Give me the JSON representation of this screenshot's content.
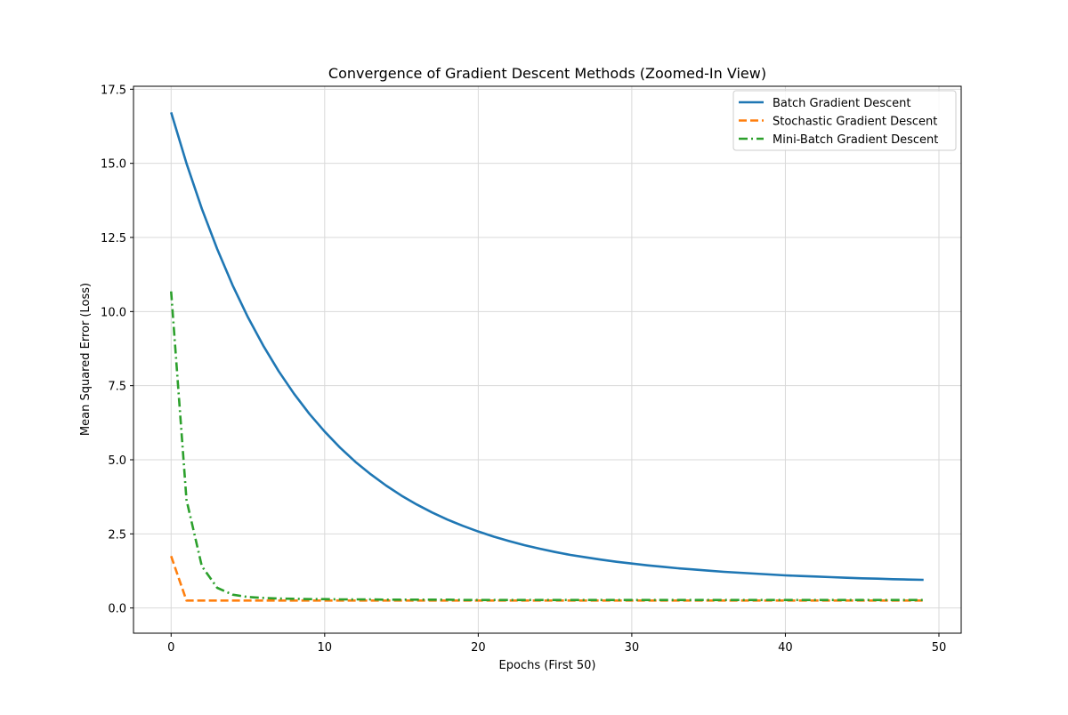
{
  "chart_data": {
    "type": "line",
    "title": "Convergence of Gradient Descent Methods (Zoomed-In View)",
    "xlabel": "Epochs (First 50)",
    "ylabel": "Mean Squared Error (Loss)",
    "xlim": [
      -2.45,
      51.45
    ],
    "ylim": [
      -0.85,
      17.6
    ],
    "grid": true,
    "legend_position": "top-right",
    "x_ticks": [
      0,
      10,
      20,
      30,
      40,
      50
    ],
    "x_tick_labels": [
      "0",
      "10",
      "20",
      "30",
      "40",
      "50"
    ],
    "y_ticks": [
      0,
      2.5,
      5,
      7.5,
      10,
      12.5,
      15,
      17.5
    ],
    "y_tick_labels": [
      "0.0",
      "2.5",
      "5.0",
      "7.5",
      "10.0",
      "12.5",
      "15.0",
      "17.5"
    ],
    "x": [
      0,
      1,
      2,
      3,
      4,
      5,
      6,
      7,
      8,
      9,
      10,
      11,
      12,
      13,
      14,
      15,
      16,
      17,
      18,
      19,
      20,
      21,
      22,
      23,
      24,
      25,
      26,
      27,
      28,
      29,
      30,
      31,
      32,
      33,
      34,
      35,
      36,
      37,
      38,
      39,
      40,
      41,
      42,
      43,
      44,
      45,
      46,
      47,
      48,
      49
    ],
    "series": [
      {
        "name": "Batch Gradient Descent",
        "color": "#1f77b4",
        "style": "solid",
        "values": [
          16.72,
          15.0,
          13.47,
          12.11,
          10.89,
          9.81,
          8.85,
          7.99,
          7.23,
          6.55,
          5.95,
          5.41,
          4.93,
          4.51,
          4.13,
          3.79,
          3.49,
          3.22,
          2.98,
          2.77,
          2.58,
          2.41,
          2.26,
          2.12,
          2.0,
          1.89,
          1.79,
          1.71,
          1.63,
          1.56,
          1.5,
          1.44,
          1.39,
          1.34,
          1.3,
          1.26,
          1.22,
          1.19,
          1.16,
          1.13,
          1.1,
          1.08,
          1.06,
          1.04,
          1.02,
          1.0,
          0.99,
          0.97,
          0.96,
          0.95
        ]
      },
      {
        "name": "Stochastic Gradient Descent",
        "color": "#ff7f0e",
        "style": "dashed",
        "values": [
          1.75,
          0.25,
          0.25,
          0.25,
          0.25,
          0.25,
          0.25,
          0.25,
          0.25,
          0.25,
          0.25,
          0.25,
          0.25,
          0.25,
          0.25,
          0.25,
          0.25,
          0.25,
          0.25,
          0.25,
          0.25,
          0.25,
          0.25,
          0.25,
          0.25,
          0.25,
          0.25,
          0.25,
          0.25,
          0.25,
          0.25,
          0.25,
          0.25,
          0.25,
          0.25,
          0.25,
          0.25,
          0.25,
          0.25,
          0.25,
          0.25,
          0.25,
          0.25,
          0.25,
          0.25,
          0.25,
          0.25,
          0.25,
          0.25,
          0.25
        ]
      },
      {
        "name": "Mini-Batch Gradient Descent",
        "color": "#2ca02c",
        "style": "dashdot",
        "values": [
          10.68,
          3.65,
          1.41,
          0.68,
          0.45,
          0.37,
          0.34,
          0.32,
          0.31,
          0.3,
          0.3,
          0.29,
          0.29,
          0.29,
          0.28,
          0.28,
          0.28,
          0.28,
          0.28,
          0.27,
          0.27,
          0.27,
          0.27,
          0.27,
          0.27,
          0.27,
          0.27,
          0.27,
          0.27,
          0.27,
          0.27,
          0.27,
          0.27,
          0.27,
          0.27,
          0.27,
          0.27,
          0.27,
          0.27,
          0.27,
          0.27,
          0.27,
          0.27,
          0.27,
          0.27,
          0.27,
          0.27,
          0.27,
          0.27,
          0.27
        ]
      }
    ]
  }
}
